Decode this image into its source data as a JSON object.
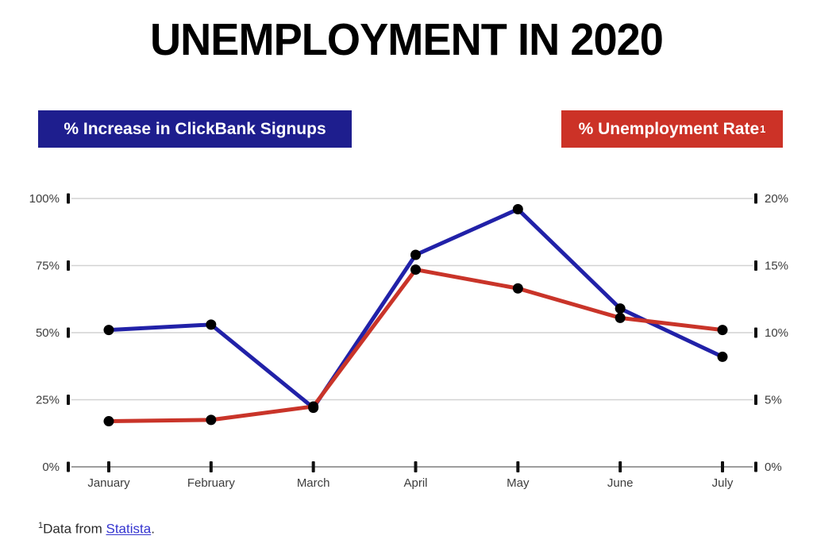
{
  "title": "UNEMPLOYMENT IN 2020",
  "legend": {
    "signups": {
      "label": "% Increase in ClickBank Signups",
      "color": "#1e1e8e",
      "text_color": "#ffffff"
    },
    "unemployment": {
      "label": "% Unemployment Rate",
      "superscript": "1",
      "color": "#cc3227",
      "text_color": "#ffffff"
    }
  },
  "footnote": {
    "superscript": "1",
    "text": "Data from ",
    "link_text": "Statista",
    "suffix": ".",
    "link_color": "#3434cf"
  },
  "chart_data": {
    "type": "line",
    "categories": [
      "January",
      "February",
      "March",
      "April",
      "May",
      "June",
      "July"
    ],
    "series": [
      {
        "name": "% Increase in ClickBank Signups",
        "axis": "left",
        "color": "#2121a8",
        "values": [
          51,
          53,
          22,
          79,
          96,
          59,
          41
        ]
      },
      {
        "name": "% Unemployment Rate",
        "axis": "right",
        "color": "#c93429",
        "values": [
          3.4,
          3.5,
          4.5,
          14.7,
          13.3,
          11.1,
          10.2
        ]
      }
    ],
    "left_axis": {
      "ticks": [
        "0%",
        "25%",
        "50%",
        "75%",
        "100%"
      ],
      "min": 0,
      "max": 100
    },
    "right_axis": {
      "ticks": [
        "0%",
        "5%",
        "10%",
        "15%",
        "20%"
      ],
      "min": 0,
      "max": 20
    },
    "marker_color": "#000000",
    "grid": true,
    "legend_position": "top"
  }
}
